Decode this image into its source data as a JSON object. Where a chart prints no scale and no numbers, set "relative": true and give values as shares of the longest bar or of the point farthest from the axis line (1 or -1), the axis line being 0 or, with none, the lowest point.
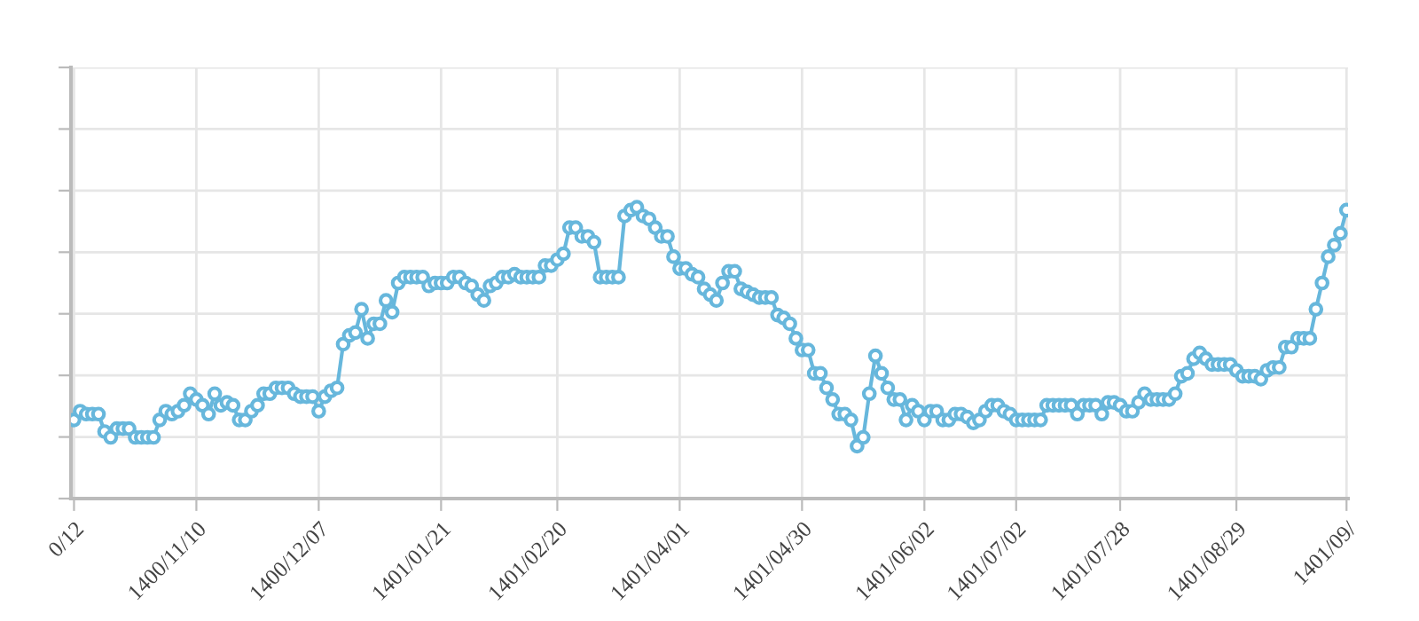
{
  "chart_data": {
    "type": "line",
    "relative": true,
    "marker": "circle",
    "line_style": "solid",
    "grid": true,
    "legend": false,
    "categories": [
      "0/12",
      null,
      null,
      null,
      null,
      null,
      null,
      null,
      null,
      null,
      null,
      null,
      null,
      null,
      null,
      null,
      null,
      null,
      null,
      null,
      "1400/11/10",
      null,
      null,
      null,
      null,
      null,
      null,
      null,
      null,
      null,
      null,
      null,
      null,
      null,
      null,
      null,
      null,
      null,
      null,
      null,
      "1400/12/07",
      null,
      null,
      null,
      null,
      null,
      null,
      null,
      null,
      null,
      null,
      null,
      null,
      null,
      null,
      null,
      null,
      null,
      null,
      null,
      "1401/01/21",
      null,
      null,
      null,
      null,
      null,
      null,
      null,
      null,
      null,
      null,
      null,
      null,
      null,
      null,
      null,
      null,
      null,
      null,
      "1401/02/20",
      null,
      null,
      null,
      null,
      null,
      null,
      null,
      null,
      null,
      null,
      null,
      null,
      null,
      null,
      null,
      null,
      null,
      null,
      null,
      "1401/04/01",
      null,
      null,
      null,
      null,
      null,
      null,
      null,
      null,
      null,
      null,
      null,
      null,
      null,
      null,
      null,
      null,
      null,
      null,
      null,
      "1401/04/30",
      null,
      null,
      null,
      null,
      null,
      null,
      null,
      null,
      null,
      null,
      null,
      null,
      null,
      null,
      null,
      null,
      null,
      null,
      null,
      "1401/06/02",
      null,
      null,
      null,
      null,
      null,
      null,
      null,
      null,
      null,
      null,
      null,
      null,
      null,
      null,
      "1401/07/02",
      null,
      null,
      null,
      null,
      null,
      null,
      null,
      null,
      null,
      null,
      null,
      null,
      null,
      null,
      null,
      null,
      "1401/07/28",
      null,
      null,
      null,
      null,
      null,
      null,
      null,
      null,
      null,
      null,
      null,
      null,
      null,
      null,
      null,
      null,
      null,
      null,
      "1401/08/29",
      null,
      null,
      null,
      null,
      null,
      null,
      null,
      null,
      null,
      null,
      null,
      null,
      null,
      null,
      null,
      null,
      null,
      "1401/09/"
    ],
    "series": [
      {
        "color": "#67b7dc",
        "values": [
          0.27,
          0.3,
          0.29,
          0.29,
          0.29,
          0.23,
          0.21,
          0.24,
          0.24,
          0.24,
          0.21,
          0.21,
          0.21,
          0.21,
          0.27,
          0.3,
          0.29,
          0.3,
          0.32,
          0.36,
          0.34,
          0.32,
          0.29,
          0.36,
          0.32,
          0.33,
          0.32,
          0.27,
          0.27,
          0.3,
          0.32,
          0.36,
          0.36,
          0.38,
          0.38,
          0.38,
          0.36,
          0.35,
          0.35,
          0.35,
          0.3,
          0.35,
          0.37,
          0.38,
          0.53,
          0.56,
          0.57,
          0.65,
          0.55,
          0.6,
          0.6,
          0.68,
          0.64,
          0.74,
          0.76,
          0.76,
          0.76,
          0.76,
          0.73,
          0.74,
          0.74,
          0.74,
          0.76,
          0.76,
          0.74,
          0.73,
          0.7,
          0.68,
          0.73,
          0.74,
          0.76,
          0.76,
          0.77,
          0.76,
          0.76,
          0.76,
          0.76,
          0.8,
          0.8,
          0.82,
          0.84,
          0.93,
          0.93,
          0.9,
          0.9,
          0.88,
          0.76,
          0.76,
          0.76,
          0.76,
          0.97,
          0.99,
          1,
          0.97,
          0.96,
          0.93,
          0.9,
          0.9,
          0.83,
          0.79,
          0.79,
          0.77,
          0.76,
          0.72,
          0.7,
          0.68,
          0.74,
          0.78,
          0.78,
          0.72,
          0.71,
          0.7,
          0.69,
          0.69,
          0.69,
          0.63,
          0.62,
          0.6,
          0.55,
          0.51,
          0.51,
          0.43,
          0.43,
          0.38,
          0.34,
          0.29,
          0.29,
          0.27,
          0.18,
          0.21,
          0.36,
          0.49,
          0.43,
          0.38,
          0.34,
          0.34,
          0.27,
          0.32,
          0.3,
          0.27,
          0.3,
          0.3,
          0.27,
          0.27,
          0.29,
          0.29,
          0.28,
          0.26,
          0.27,
          0.3,
          0.32,
          0.32,
          0.3,
          0.29,
          0.27,
          0.27,
          0.27,
          0.27,
          0.27,
          0.32,
          0.32,
          0.32,
          0.32,
          0.32,
          0.29,
          0.32,
          0.32,
          0.32,
          0.29,
          0.33,
          0.33,
          0.32,
          0.3,
          0.3,
          0.33,
          0.36,
          0.34,
          0.34,
          0.34,
          0.34,
          0.36,
          0.42,
          0.43,
          0.48,
          0.5,
          0.48,
          0.46,
          0.46,
          0.46,
          0.46,
          0.44,
          0.42,
          0.42,
          0.42,
          0.41,
          0.44,
          0.45,
          0.45,
          0.52,
          0.52,
          0.55,
          0.55,
          0.55,
          0.65,
          0.74,
          0.83,
          0.87,
          0.91,
          0.99
        ]
      }
    ]
  }
}
